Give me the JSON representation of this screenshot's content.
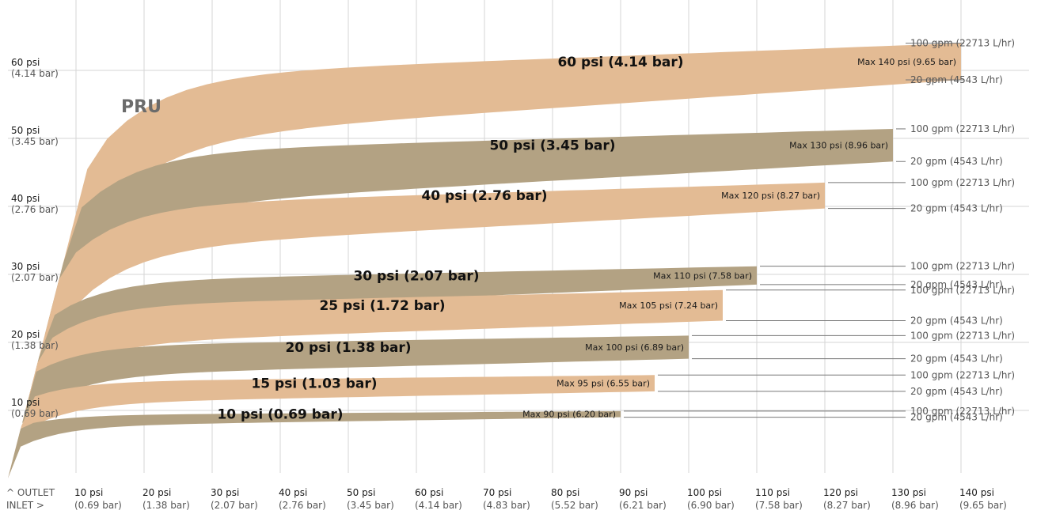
{
  "chart_data": {
    "type": "area",
    "title": "PRU",
    "x_axis": {
      "corner_label_top": "^ OUTLET",
      "corner_label_bottom": "INLET >",
      "range": [
        0,
        140
      ],
      "unit": "psi",
      "ticks": [
        {
          "value": 10,
          "psi": "10 psi",
          "bar": "(0.69 bar)"
        },
        {
          "value": 20,
          "psi": "20 psi",
          "bar": "(1.38 bar)"
        },
        {
          "value": 30,
          "psi": "30 psi",
          "bar": "(2.07 bar)"
        },
        {
          "value": 40,
          "psi": "40 psi",
          "bar": "(2.76 bar)"
        },
        {
          "value": 50,
          "psi": "50 psi",
          "bar": "(3.45 bar)"
        },
        {
          "value": 60,
          "psi": "60 psi",
          "bar": "(4.14 bar)"
        },
        {
          "value": 70,
          "psi": "70 psi",
          "bar": "(4.83 bar)"
        },
        {
          "value": 80,
          "psi": "80 psi",
          "bar": "(5.52 bar)"
        },
        {
          "value": 90,
          "psi": "90 psi",
          "bar": "(6.21 bar)"
        },
        {
          "value": 100,
          "psi": "100 psi",
          "bar": "(6.90 bar)"
        },
        {
          "value": 110,
          "psi": "110 psi",
          "bar": "(7.58 bar)"
        },
        {
          "value": 120,
          "psi": "120 psi",
          "bar": "(8.27 bar)"
        },
        {
          "value": 130,
          "psi": "130 psi",
          "bar": "(8.96 bar)"
        },
        {
          "value": 140,
          "psi": "140 psi",
          "bar": "(9.65 bar)"
        }
      ]
    },
    "y_axis": {
      "range": [
        0,
        70
      ],
      "unit": "psi",
      "ticks": [
        {
          "value": 10,
          "psi": "10 psi",
          "bar": "(0.69 bar)"
        },
        {
          "value": 20,
          "psi": "20 psi",
          "bar": "(1.38 bar)"
        },
        {
          "value": 30,
          "psi": "30 psi",
          "bar": "(2.07 bar)"
        },
        {
          "value": 40,
          "psi": "40 psi",
          "bar": "(2.76 bar)"
        },
        {
          "value": 50,
          "psi": "50 psi",
          "bar": "(3.45 bar)"
        },
        {
          "value": 60,
          "psi": "60 psi",
          "bar": "(4.14 bar)"
        }
      ]
    },
    "grid": true,
    "colors": {
      "light": "#e3bb94",
      "dark": "#b3a283"
    },
    "series": [
      {
        "label": "10 psi  (0.69 bar)",
        "setting": 10,
        "max_inlet": 90,
        "max_label": "Max 90 psi  (6.20 bar)",
        "color": "dark",
        "hi_gpm": {
          "label": "100 gpm (22713 L/hr)",
          "outlet": 9.9
        },
        "lo_gpm": {
          "label": "20 gpm (4543 L/hr)",
          "outlet": 9.0
        }
      },
      {
        "label": "15 psi  (1.03 bar)",
        "setting": 15,
        "max_inlet": 95,
        "max_label": "Max 95 psi  (6.55 bar)",
        "color": "light",
        "hi_gpm": {
          "label": "100 gpm (22713 L/hr)",
          "outlet": 15.2
        },
        "lo_gpm": {
          "label": "20 gpm (4543 L/hr)",
          "outlet": 12.8
        }
      },
      {
        "label": "20 psi  (1.38 bar)",
        "setting": 20,
        "max_inlet": 100,
        "max_label": "Max 100 psi  (6.89 bar)",
        "color": "dark",
        "hi_gpm": {
          "label": "100 gpm (22713 L/hr)",
          "outlet": 21.0
        },
        "lo_gpm": {
          "label": "20 gpm (4543 L/hr)",
          "outlet": 17.6
        }
      },
      {
        "label": "25 psi  (1.72 bar)",
        "setting": 25,
        "max_inlet": 105,
        "max_label": "Max 105 psi  (7.24 bar)",
        "color": "light",
        "hi_gpm": {
          "label": "100 gpm (22713 L/hr)",
          "outlet": 27.7
        },
        "lo_gpm": {
          "label": "20 gpm (4543 L/hr)",
          "outlet": 23.2
        }
      },
      {
        "label": "30 psi  (2.07 bar)",
        "setting": 30,
        "max_inlet": 110,
        "max_label": "Max 110 psi  (7.58 bar)",
        "color": "dark",
        "hi_gpm": {
          "label": "100 gpm (22713 L/hr)",
          "outlet": 31.2
        },
        "lo_gpm": {
          "label": "20 gpm (4543 L/hr)",
          "outlet": 28.5
        }
      },
      {
        "label": "40 psi  (2.76 bar)",
        "setting": 40,
        "max_inlet": 120,
        "max_label": "Max 120 psi  (8.27 bar)",
        "color": "light",
        "hi_gpm": {
          "label": "100 gpm (22713 L/hr)",
          "outlet": 43.5
        },
        "lo_gpm": {
          "label": "20 gpm (4543 L/hr)",
          "outlet": 39.7
        }
      },
      {
        "label": "50 psi  (3.45 bar)",
        "setting": 50,
        "max_inlet": 130,
        "max_label": "Max 130 psi  (8.96 bar)",
        "color": "dark",
        "hi_gpm": {
          "label": "100 gpm (22713 L/hr)",
          "outlet": 51.4
        },
        "lo_gpm": {
          "label": "20 gpm (4543 L/hr)",
          "outlet": 46.6
        }
      },
      {
        "label": "60 psi  (4.14 bar)",
        "setting": 60,
        "max_inlet": 140,
        "max_label": "Max 140 psi  (9.65 bar)",
        "color": "light",
        "hi_gpm": {
          "label": "100 gpm (22713 L/hr)",
          "outlet": 64.0
        },
        "lo_gpm": {
          "label": "20 gpm (4543 L/hr)",
          "outlet": 58.6
        }
      }
    ]
  }
}
